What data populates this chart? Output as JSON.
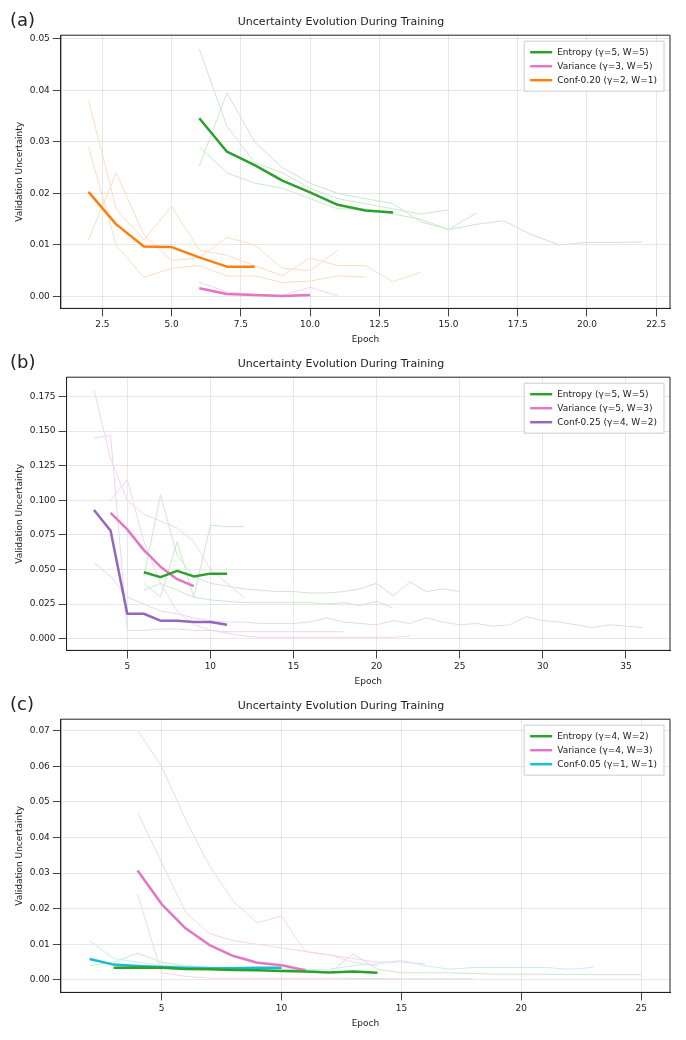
{
  "chart_data": [
    {
      "type": "line",
      "title": "Uncertainty Evolution During Training",
      "xlabel": "Epoch",
      "ylabel": "Validation Uncertainty",
      "annotations": [
        "(a)"
      ],
      "legend": "top right",
      "grid": true,
      "xlim": [
        1,
        23
      ],
      "xticks": [
        {
          "value": 2.5,
          "label": "2.5"
        },
        {
          "value": 5,
          "label": "5.0"
        },
        {
          "value": 7.5,
          "label": "7.5"
        },
        {
          "value": 10,
          "label": "10.0"
        },
        {
          "value": 12.5,
          "label": "12.5"
        },
        {
          "value": 15,
          "label": "15.0"
        },
        {
          "value": 17.5,
          "label": "17.5"
        },
        {
          "value": 20,
          "label": "20.0"
        },
        {
          "value": 22.5,
          "label": "22.5"
        }
      ],
      "ylim": [
        -0.0023,
        0.0507
      ],
      "yticks": [
        {
          "value": 0,
          "label": "0.00"
        },
        {
          "value": 0.01,
          "label": "0.01"
        },
        {
          "value": 0.02,
          "label": "0.02"
        },
        {
          "value": 0.03,
          "label": "0.03"
        },
        {
          "value": 0.04,
          "label": "0.04"
        },
        {
          "value": 0.05,
          "label": "0.05"
        }
      ],
      "series": [
        {
          "color": "#cbe8cb",
          "x": [
            6,
            7,
            8,
            9,
            10,
            11,
            12,
            13,
            14,
            15,
            16,
            17,
            18,
            19,
            20,
            21,
            22
          ],
          "values": [
            0.029,
            0.024,
            0.022,
            0.021,
            0.019,
            0.017,
            0.017,
            0.016,
            0.015,
            0.013,
            0.014,
            0.0147,
            0.012,
            0.01,
            0.0105,
            0.0105,
            0.0106
          ]
        },
        {
          "color": "#cbe8cb",
          "x": [
            6,
            7,
            8,
            9,
            10,
            11,
            12,
            13,
            14,
            15
          ],
          "values": [
            0.048,
            0.033,
            0.026,
            0.024,
            0.021,
            0.019,
            0.018,
            0.017,
            0.016,
            0.0168
          ]
        },
        {
          "color": "#cbe8cb",
          "x": [
            6,
            7,
            8,
            9,
            10,
            11,
            12,
            13,
            14,
            15,
            16
          ],
          "values": [
            0.0253,
            0.0395,
            0.03,
            0.025,
            0.022,
            0.02,
            0.019,
            0.018,
            0.0145,
            0.013,
            0.0162
          ]
        },
        {
          "color": "#ffdcc0",
          "x": [
            2,
            3,
            4,
            5,
            6,
            7,
            8,
            9,
            10,
            11,
            12,
            13,
            14
          ],
          "values": [
            0.038,
            0.017,
            0.011,
            0.0175,
            0.009,
            0.008,
            0.006,
            0.004,
            0.0075,
            0.006,
            0.006,
            0.0029,
            0.0047
          ]
        },
        {
          "color": "#ffdcc0",
          "x": [
            2,
            3,
            4,
            5,
            6,
            7,
            8,
            9,
            10,
            11
          ],
          "values": [
            0.011,
            0.024,
            0.012,
            0.007,
            0.0075,
            0.0115,
            0.01,
            0.0055,
            0.005,
            0.009
          ]
        },
        {
          "color": "#ffdcc0",
          "x": [
            2,
            3,
            4,
            5,
            6,
            7,
            8,
            9,
            10,
            11,
            12
          ],
          "values": [
            0.029,
            0.01,
            0.0037,
            0.0055,
            0.006,
            0.004,
            0.004,
            0.0027,
            0.003,
            0.004,
            0.0038
          ]
        },
        {
          "color": "#f6d4ee",
          "x": [
            6,
            7,
            8,
            9,
            10,
            11
          ],
          "values": [
            0.0028,
            0.0009,
            0.0004,
            0.0002,
            0.0018,
            0.0001
          ]
        },
        {
          "name": "Entropy (γ=5, W=5)",
          "color": "#2ca02c",
          "x": [
            6,
            7,
            8,
            9,
            10,
            11,
            12,
            13
          ],
          "values": [
            0.0346,
            0.0281,
            0.0255,
            0.0225,
            0.0202,
            0.0178,
            0.0167,
            0.0163
          ]
        },
        {
          "name": "Variance (γ=3, W=5)",
          "color": "#e377c2",
          "x": [
            6,
            7,
            8,
            9,
            10
          ],
          "values": [
            0.0016,
            0.0005,
            0.0003,
            0.0001,
            0.0003
          ]
        },
        {
          "name": "Conf-0.20 (γ=2, W=1)",
          "color": "#ff7f0e",
          "x": [
            2,
            3,
            4,
            5,
            6,
            7,
            8
          ],
          "values": [
            0.0203,
            0.014,
            0.0097,
            0.0096,
            0.0076,
            0.0058,
            0.0058
          ]
        }
      ]
    },
    {
      "type": "line",
      "title": "Uncertainty Evolution During Training",
      "xlabel": "Epoch",
      "ylabel": "Validation Uncertainty",
      "annotations": [
        "(b)"
      ],
      "legend": "top right",
      "grid": true,
      "xlim": [
        1.35,
        37.65
      ],
      "xticks": [
        5,
        10,
        15,
        20,
        25,
        30,
        35
      ],
      "ylim": [
        -0.0085,
        0.189
      ],
      "yticks": [
        {
          "value": 0,
          "label": "0.000"
        },
        {
          "value": 0.025,
          "label": "0.025"
        },
        {
          "value": 0.05,
          "label": "0.050"
        },
        {
          "value": 0.075,
          "label": "0.075"
        },
        {
          "value": 0.1,
          "label": "0.100"
        },
        {
          "value": 0.125,
          "label": "0.125"
        },
        {
          "value": 0.15,
          "label": "0.150"
        },
        {
          "value": 0.175,
          "label": "0.175"
        }
      ],
      "series": [
        {
          "color": "#cbe8cb",
          "x": [
            6,
            7,
            8,
            9,
            10,
            11,
            12,
            13,
            14,
            15,
            16,
            17,
            18,
            19,
            20,
            21,
            22,
            23,
            24,
            25
          ],
          "values": [
            0.045,
            0.104,
            0.06,
            0.045,
            0.04,
            0.038,
            0.036,
            0.035,
            0.034,
            0.034,
            0.033,
            0.033,
            0.034,
            0.036,
            0.04,
            0.031,
            0.041,
            0.034,
            0.036,
            0.034
          ]
        },
        {
          "color": "#cbe8cb",
          "x": [
            6,
            7,
            8,
            9,
            10,
            11,
            12
          ],
          "values": [
            0.04,
            0.03,
            0.07,
            0.03,
            0.082,
            0.081,
            0.081
          ]
        },
        {
          "color": "#cbe8cb",
          "x": [
            6,
            7,
            8,
            9,
            10,
            11,
            12,
            13,
            14,
            15,
            16,
            17,
            18,
            19,
            20,
            21
          ],
          "values": [
            0.035,
            0.04,
            0.035,
            0.03,
            0.028,
            0.027,
            0.026,
            0.026,
            0.026,
            0.026,
            0.026,
            0.025,
            0.026,
            0.024,
            0.027,
            0.022
          ]
        },
        {
          "color": "#e4d9f0",
          "x": [
            3,
            4,
            5,
            6,
            7,
            8,
            9,
            10,
            11,
            12,
            13,
            14,
            15,
            16,
            17,
            18
          ],
          "values": [
            0.145,
            0.147,
            0.006,
            0.006,
            0.007,
            0.007,
            0.006,
            0.006,
            0.005,
            0.005,
            0.005,
            0.005,
            0.005,
            0.005,
            0.005,
            0.005
          ]
        },
        {
          "color": "#e4d9f0",
          "x": [
            3,
            4,
            5,
            6,
            7,
            8,
            9,
            10,
            11,
            12,
            13,
            14,
            15,
            16,
            17,
            18,
            19,
            20,
            21,
            22,
            23,
            24,
            25,
            26,
            27,
            28,
            29,
            30,
            31,
            32,
            33,
            34,
            35,
            36
          ],
          "values": [
            0.055,
            0.045,
            0.03,
            0.025,
            0.02,
            0.018,
            0.015,
            0.013,
            0.012,
            0.012,
            0.011,
            0.011,
            0.011,
            0.012,
            0.015,
            0.012,
            0.011,
            0.01,
            0.013,
            0.011,
            0.015,
            0.012,
            0.01,
            0.011,
            0.009,
            0.01,
            0.016,
            0.013,
            0.012,
            0.01,
            0.008,
            0.01,
            0.009,
            0.008
          ]
        },
        {
          "color": "#f6d4ee",
          "x": [
            3,
            4,
            5,
            6,
            7,
            8,
            9,
            10,
            11,
            12
          ],
          "values": [
            0.18,
            0.13,
            0.1,
            0.09,
            0.085,
            0.08,
            0.07,
            0.05,
            0.04,
            0.03
          ]
        },
        {
          "color": "#f6d4ee",
          "x": [
            4,
            5,
            6,
            7,
            8,
            9,
            10,
            11,
            12,
            13,
            14,
            15,
            16,
            17,
            18,
            19,
            20,
            21,
            22
          ],
          "values": [
            0.1,
            0.115,
            0.07,
            0.04,
            0.02,
            0.01,
            0.006,
            0.004,
            0.002,
            0.001,
            0.001,
            0.001,
            0.001,
            0.001,
            0.001,
            0.001,
            0.001,
            0.001,
            0.002
          ]
        },
        {
          "name": "Entropy (γ=5, W=5)",
          "color": "#2ca02c",
          "x": [
            6,
            7,
            8,
            9,
            10,
            11
          ],
          "values": [
            0.048,
            0.0445,
            0.049,
            0.045,
            0.047,
            0.047
          ]
        },
        {
          "name": "Variance (γ=5, W=3)",
          "color": "#e377c2",
          "x": [
            4,
            5,
            6,
            7,
            8,
            9
          ],
          "values": [
            0.091,
            0.079,
            0.064,
            0.052,
            0.043,
            0.038
          ]
        },
        {
          "name": "Conf-0.25 (γ=4, W=2)",
          "color": "#9467bd",
          "x": [
            3,
            4,
            5,
            6,
            7,
            8,
            9,
            10,
            11
          ],
          "values": [
            0.093,
            0.078,
            0.018,
            0.018,
            0.013,
            0.013,
            0.012,
            0.012,
            0.01
          ]
        }
      ]
    },
    {
      "type": "line",
      "title": "Uncertainty Evolution During Training",
      "xlabel": "Epoch",
      "ylabel": "Validation Uncertainty",
      "annotations": [
        "(c)"
      ],
      "legend": "top right",
      "grid": true,
      "xlim": [
        0.8,
        26.2
      ],
      "xticks": [
        5,
        10,
        15,
        20,
        25
      ],
      "ylim": [
        -0.0035,
        0.0732
      ],
      "yticks": [
        {
          "value": 0,
          "label": "0.00"
        },
        {
          "value": 0.01,
          "label": "0.01"
        },
        {
          "value": 0.02,
          "label": "0.02"
        },
        {
          "value": 0.03,
          "label": "0.03"
        },
        {
          "value": 0.04,
          "label": "0.04"
        },
        {
          "value": 0.05,
          "label": "0.05"
        },
        {
          "value": 0.06,
          "label": "0.06"
        },
        {
          "value": 0.07,
          "label": "0.07"
        }
      ],
      "series": [
        {
          "color": "#f6d4ee",
          "x": [
            4,
            5,
            6,
            7,
            8,
            9,
            10,
            11,
            12,
            13,
            14,
            15,
            16
          ],
          "values": [
            0.07,
            0.06,
            0.045,
            0.032,
            0.022,
            0.016,
            0.018,
            0.008,
            0.007,
            0.006,
            0.005,
            0.005,
            0.0045
          ]
        },
        {
          "color": "#f6d4ee",
          "x": [
            4,
            5,
            6,
            7,
            8,
            9,
            10,
            11,
            12,
            13,
            14
          ],
          "values": [
            0.047,
            0.033,
            0.019,
            0.013,
            0.011,
            0.01,
            0.009,
            0.008,
            0.007,
            0.005,
            0.004
          ]
        },
        {
          "color": "#f6d4ee",
          "x": [
            4,
            5,
            6,
            7,
            8,
            9,
            10,
            11,
            12,
            13,
            14,
            15,
            16,
            17,
            18
          ],
          "values": [
            0.024,
            0.002,
            0.001,
            0.0005,
            0.0005,
            0.0005,
            0.0005,
            0.0005,
            0.0005,
            0.0004,
            0.0004,
            0.0003,
            0.0003,
            0.0003,
            0.0003
          ]
        },
        {
          "color": "#c5eef3",
          "x": [
            2,
            3,
            4,
            5,
            6,
            7,
            8,
            9,
            10,
            11,
            12,
            13,
            14,
            15,
            16,
            17,
            18,
            19,
            20,
            21,
            22,
            23
          ],
          "values": [
            0.011,
            0.006,
            0.005,
            0.004,
            0.004,
            0.0035,
            0.0035,
            0.003,
            0.003,
            0.003,
            0.003,
            0.004,
            0.0045,
            0.0055,
            0.004,
            0.003,
            0.0035,
            0.0035,
            0.0035,
            0.0035,
            0.003,
            0.0035
          ]
        },
        {
          "color": "#cbe8cb",
          "x": [
            2,
            3,
            4,
            5,
            6,
            7,
            8,
            9,
            10,
            11,
            12,
            13,
            14,
            15,
            16,
            17,
            18,
            19,
            20,
            21,
            22,
            23,
            24,
            25
          ],
          "values": [
            0.004,
            0.005,
            0.0075,
            0.005,
            0.004,
            0.0035,
            0.003,
            0.003,
            0.003,
            0.003,
            0.002,
            0.0073,
            0.003,
            0.002,
            0.002,
            0.002,
            0.0018,
            0.0016,
            0.0016,
            0.0016,
            0.0015,
            0.0015,
            0.0015,
            0.0015
          ]
        },
        {
          "name": "Entropy (γ=4, W=2)",
          "color": "#2ca02c",
          "x": [
            3,
            4,
            5,
            6,
            7,
            8,
            9,
            10,
            11,
            12,
            13,
            14
          ],
          "values": [
            0.0034,
            0.0035,
            0.0034,
            0.0031,
            0.003,
            0.0028,
            0.0027,
            0.0025,
            0.0024,
            0.0021,
            0.0024,
            0.002
          ]
        },
        {
          "name": "Variance (γ=4, W=3)",
          "color": "#e377c2",
          "x": [
            4,
            5,
            6,
            7,
            8,
            9,
            10,
            11
          ],
          "values": [
            0.0307,
            0.0213,
            0.0145,
            0.0098,
            0.0067,
            0.0048,
            0.0041,
            0.0027
          ]
        },
        {
          "name": "Conf-0.05 (γ=1, W=1)",
          "color": "#17becf",
          "x": [
            2,
            3,
            4,
            5,
            6,
            7,
            8,
            9,
            10
          ],
          "values": [
            0.0059,
            0.0043,
            0.0039,
            0.0036,
            0.0034,
            0.0033,
            0.0033,
            0.0034,
            0.0034
          ]
        }
      ]
    }
  ]
}
